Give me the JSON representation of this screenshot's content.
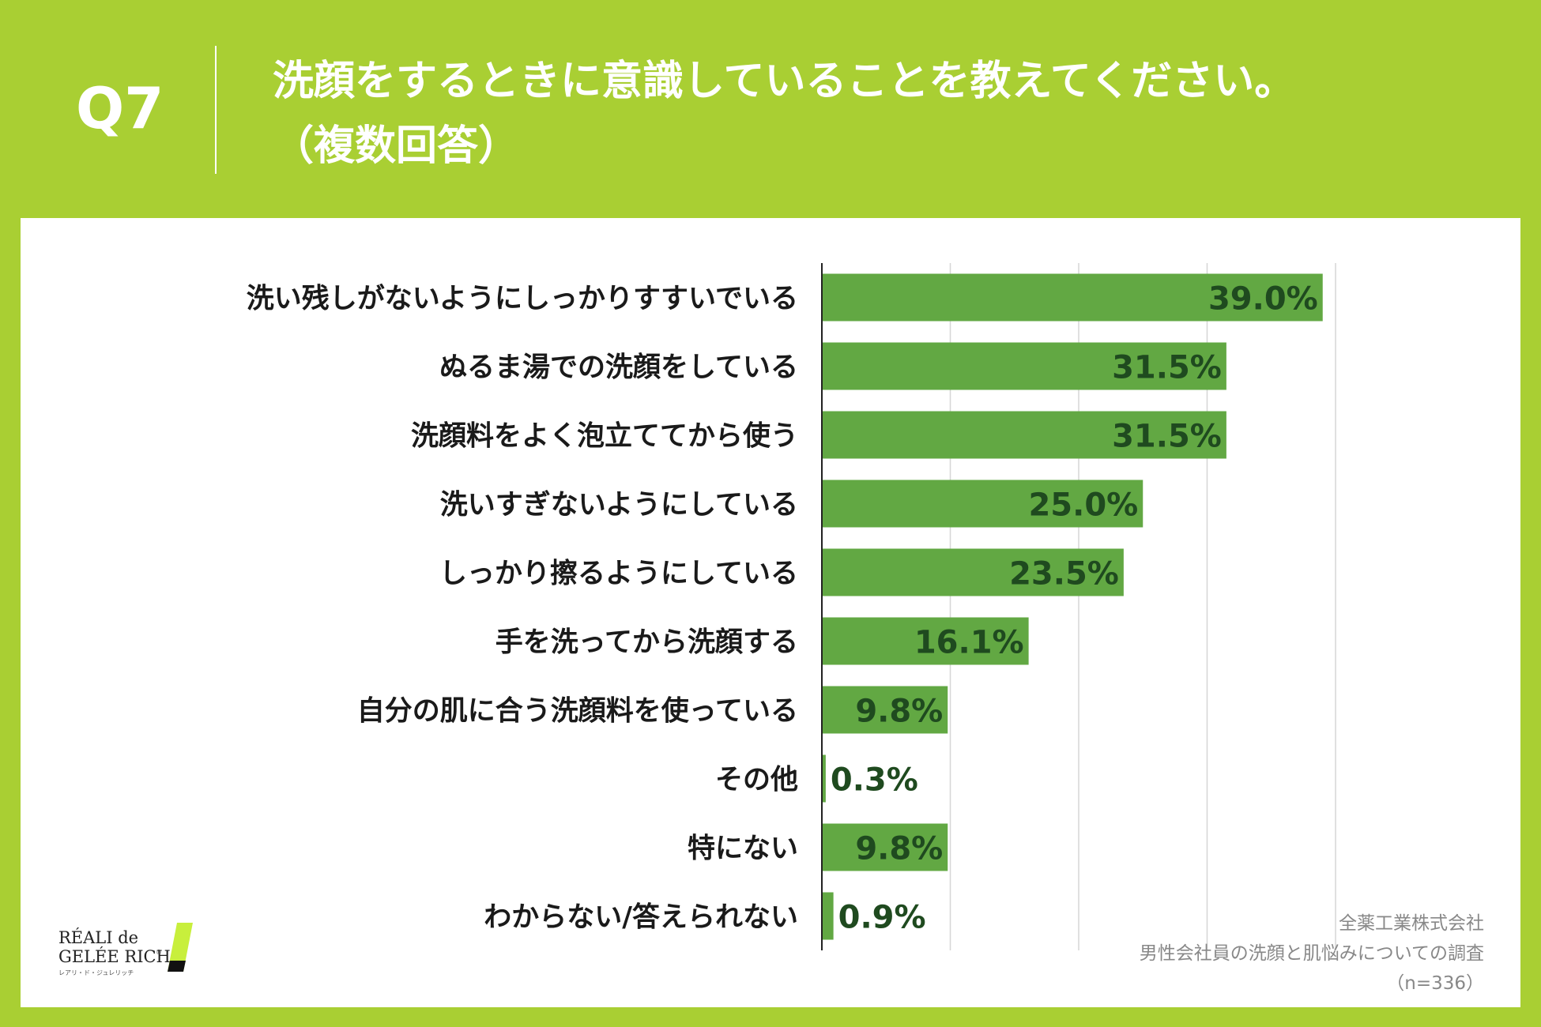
{
  "header": {
    "qnum": "Q7",
    "title": "洗顔をするときに意識していることを教えてください。",
    "subtitle": "（複数回答）"
  },
  "chart_data": {
    "type": "bar",
    "orientation": "horizontal",
    "categories": [
      "洗い残しがないようにしっかりすすいでいる",
      "ぬるま湯での洗顔をしている",
      "洗顔料をよく泡立ててから使う",
      "洗いすぎないようにしている",
      "しっかり擦るようにしている",
      "手を洗ってから洗顔する",
      "自分の肌に合う洗顔料を使っている",
      "その他",
      "特にない",
      "わからない/答えられない"
    ],
    "values": [
      39.0,
      31.5,
      31.5,
      25.0,
      23.5,
      16.1,
      9.8,
      0.3,
      9.8,
      0.9
    ],
    "value_labels": [
      "39.0%",
      "31.5%",
      "31.5%",
      "25.0%",
      "23.5%",
      "16.1%",
      "9.8%",
      "0.3%",
      "9.8%",
      "0.9%"
    ],
    "xlim": [
      0,
      40
    ],
    "grid": true,
    "bar_color": "#62a843"
  },
  "source": {
    "line1": "全薬工業株式会社",
    "line2": "男性会社員の洗顔と肌悩みについての調査",
    "line3": "（n=336）"
  },
  "logo": {
    "line1": "RÉALI de",
    "line2": "GELÉE RICH",
    "reg": "®",
    "kana": "レアリ・ド・ジュレリッチ"
  },
  "colors": {
    "frame": "#a9cf33",
    "bar": "#62a843",
    "value_text": "#1f4a1f"
  }
}
